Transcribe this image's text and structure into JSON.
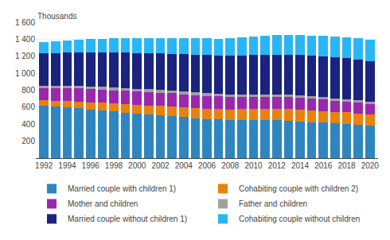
{
  "chart_data": {
    "type": "bar",
    "stacked": true,
    "ylabel": "Thousands",
    "x": [
      1992,
      1993,
      1994,
      1995,
      1996,
      1997,
      1998,
      1999,
      2000,
      2001,
      2002,
      2003,
      2004,
      2005,
      2006,
      2007,
      2008,
      2009,
      2010,
      2011,
      2012,
      2013,
      2014,
      2015,
      2016,
      2017,
      2018,
      2019,
      2020
    ],
    "xlim": [
      1991.3,
      2020.7
    ],
    "xticks": [
      1992,
      1994,
      1996,
      1998,
      2000,
      2002,
      2004,
      2006,
      2008,
      2010,
      2012,
      2014,
      2016,
      2018,
      2020
    ],
    "ylim": [
      0,
      1600
    ],
    "yticks": [
      200,
      400,
      600,
      800,
      {
        "value": 1000,
        "label": "1 000"
      },
      {
        "value": 1200,
        "label": "1 200"
      },
      {
        "value": 1400,
        "label": "1 400"
      },
      {
        "value": 1600,
        "label": "1 600"
      }
    ],
    "grid": true,
    "legend": "bottom",
    "series": [
      {
        "name": "Married couple with children 1)",
        "color": "#2e86c1",
        "values": [
          614,
          605,
          598,
          587,
          575,
          563,
          550,
          538,
          525,
          515,
          505,
          495,
          482,
          472,
          462,
          455,
          450,
          448,
          448,
          447,
          445,
          440,
          432,
          425,
          418,
          410,
          402,
          392,
          380
        ]
      },
      {
        "name": "Cohabiting couple with children 2)",
        "color": "#e8820c",
        "values": [
          68,
          72,
          76,
          80,
          84,
          88,
          92,
          96,
          100,
          104,
          108,
          112,
          116,
          118,
          120,
          122,
          125,
          128,
          130,
          133,
          135,
          137,
          138,
          138,
          138,
          137,
          137,
          136,
          135
        ]
      },
      {
        "name": "Mother and children",
        "color": "#9b27af",
        "values": [
          145,
          148,
          150,
          153,
          155,
          157,
          158,
          158,
          158,
          158,
          157,
          156,
          155,
          153,
          152,
          150,
          148,
          147,
          145,
          143,
          142,
          140,
          138,
          136,
          133,
          130,
          127,
          124,
          120
        ]
      },
      {
        "name": "Father and children",
        "color": "#a0a0a0",
        "values": [
          28,
          29,
          30,
          31,
          32,
          33,
          33,
          33,
          33,
          33,
          32,
          32,
          32,
          31,
          31,
          30,
          30,
          30,
          30,
          30,
          29,
          29,
          29,
          28,
          28,
          28,
          27,
          27,
          27
        ]
      },
      {
        "name": "Married couple without children 1)",
        "color": "#1a237e",
        "values": [
          382,
          385,
          388,
          392,
          397,
          402,
          408,
          415,
          420,
          425,
          430,
          435,
          440,
          445,
          448,
          450,
          455,
          458,
          462,
          466,
          470,
          474,
          477,
          480,
          482,
          483,
          484,
          483,
          480
        ]
      },
      {
        "name": "Cohabiting couple without children",
        "color": "#29b6f6",
        "values": [
          130,
          138,
          146,
          153,
          159,
          164,
          169,
          173,
          176,
          180,
          183,
          187,
          190,
          194,
          197,
          200,
          205,
          210,
          215,
          220,
          225,
          230,
          235,
          238,
          242,
          245,
          248,
          252,
          255
        ]
      }
    ]
  }
}
